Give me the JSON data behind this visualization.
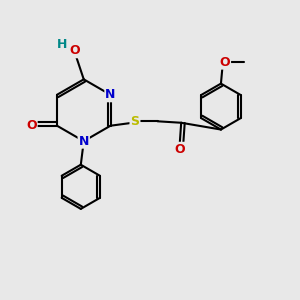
{
  "background_color": "#e8e8e8",
  "bond_color": "#000000",
  "bond_width": 1.5,
  "atom_colors": {
    "N": "#0000cc",
    "O": "#cc0000",
    "S": "#bbbb00",
    "H": "#008888"
  },
  "font_size": 9,
  "figsize": [
    3.0,
    3.0
  ],
  "dpi": 100
}
